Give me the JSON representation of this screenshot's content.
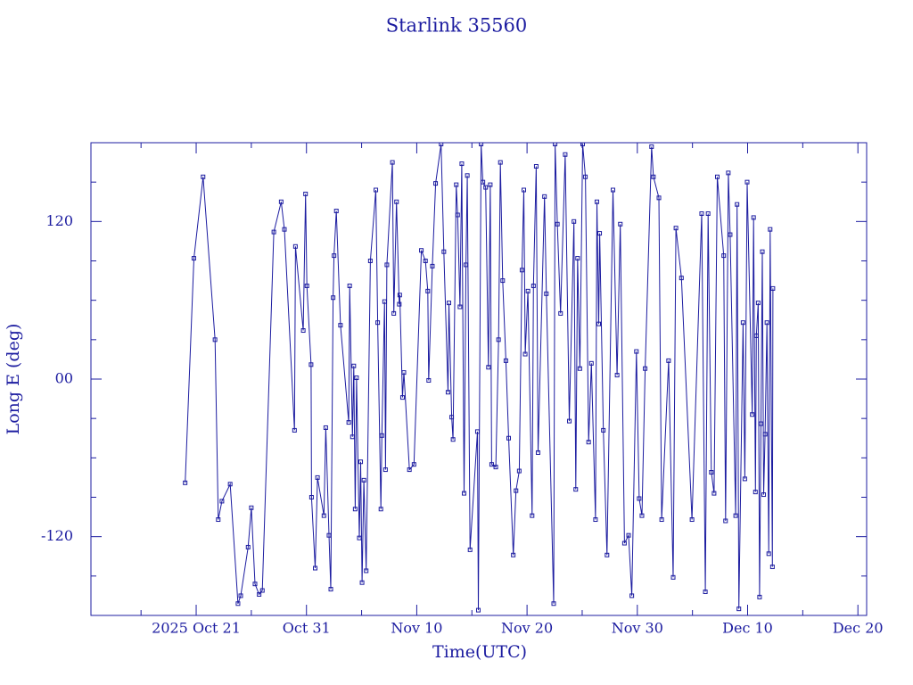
{
  "chart_data": {
    "type": "line",
    "title": "Starlink 35560",
    "x_label": "Time(UTC)",
    "y_label": "Long E (deg)",
    "color": "#1c1ca0",
    "marker": "square",
    "xlim": [
      "2025-10-11T11:00",
      "2025-12-20T19:00"
    ],
    "xticks": [
      {
        "value": "2025-10-21T00:00",
        "label": "2025 Oct 21"
      },
      {
        "value": "2025-10-31T00:00",
        "label": "Oct 31"
      },
      {
        "value": "2025-11-10T00:00",
        "label": "Nov 10"
      },
      {
        "value": "2025-11-20T00:00",
        "label": "Nov 20"
      },
      {
        "value": "2025-11-30T00:00",
        "label": "Nov 30"
      },
      {
        "value": "2025-12-10T00:00",
        "label": "Dec 10"
      },
      {
        "value": "2025-12-20T00:00",
        "label": "Dec 20"
      }
    ],
    "xminor": [
      "2025-10-16T00:00",
      "2025-10-26T00:00",
      "2025-11-05T00:00",
      "2025-11-15T00:00",
      "2025-11-25T00:00",
      "2025-12-05T00:00",
      "2025-12-15T00:00"
    ],
    "ylim": [
      -180,
      180
    ],
    "yticks": [
      -120,
      {
        "value": 0,
        "label": "00"
      },
      120
    ],
    "yminor": [
      -150,
      -90,
      -60,
      -30,
      30,
      60,
      90,
      150
    ],
    "x": [
      "2025-10-20T00:00",
      "2025-10-20T19:00",
      "2025-10-21T15:00",
      "2025-10-22T17:00",
      "2025-10-23T00:00",
      "2025-10-23T08:00",
      "2025-10-24T02:00",
      "2025-10-24T19:00",
      "2025-10-25T01:00",
      "2025-10-25T17:00",
      "2025-10-26T00:00",
      "2025-10-26T08:00",
      "2025-10-26T17:00",
      "2025-10-27T00:00",
      "2025-10-28T01:00",
      "2025-10-28T17:00",
      "2025-10-29T00:00",
      "2025-10-29T22:00",
      "2025-10-30T00:00",
      "2025-10-30T17:00",
      "2025-10-30T22:00",
      "2025-10-31T01:00",
      "2025-10-31T10:00",
      "2025-10-31T11:00",
      "2025-10-31T19:00",
      "2025-11-01T00:00",
      "2025-11-01T14:00",
      "2025-11-01T18:00",
      "2025-11-02T01:00",
      "2025-11-02T05:00",
      "2025-11-02T10:00",
      "2025-11-02T12:00",
      "2025-11-02T17:00",
      "2025-11-03T02:00",
      "2025-11-03T20:00",
      "2025-11-03T22:00",
      "2025-11-04T04:00",
      "2025-11-04T07:00",
      "2025-11-04T10:00",
      "2025-11-04T13:00",
      "2025-11-04T19:00",
      "2025-11-04T22:00",
      "2025-11-05T01:00",
      "2025-11-05T05:00",
      "2025-11-05T10:00",
      "2025-11-05T19:00",
      "2025-11-06T07:00",
      "2025-11-06T11:00",
      "2025-11-06T18:00",
      "2025-11-06T20:00",
      "2025-11-07T02:00",
      "2025-11-07T04:00",
      "2025-11-07T07:00",
      "2025-11-07T19:00",
      "2025-11-07T22:00",
      "2025-11-08T04:00",
      "2025-11-08T10:00",
      "2025-11-08T11:00",
      "2025-11-08T17:00",
      "2025-11-08T20:00",
      "2025-11-09T08:00",
      "2025-11-09T18:00",
      "2025-11-10T10:00",
      "2025-11-10T19:00",
      "2025-11-11T00:00",
      "2025-11-11T02:00",
      "2025-11-11T10:00",
      "2025-11-11T17:00",
      "2025-11-12T05:00",
      "2025-11-12T11:00",
      "2025-11-12T20:00",
      "2025-11-12T22:00",
      "2025-11-13T04:00",
      "2025-11-13T07:00",
      "2025-11-13T14:00",
      "2025-11-13T17:00",
      "2025-11-13T22:00",
      "2025-11-14T02:00",
      "2025-11-14T07:00",
      "2025-11-14T11:00",
      "2025-11-14T14:00",
      "2025-11-14T20:00",
      "2025-11-15T12:00",
      "2025-11-15T14:00",
      "2025-11-15T20:00",
      "2025-11-16T00:00",
      "2025-11-16T06:00",
      "2025-11-16T12:00",
      "2025-11-16T16:00",
      "2025-11-16T19:00",
      "2025-11-17T04:00",
      "2025-11-17T10:00",
      "2025-11-17T14:00",
      "2025-11-17T19:00",
      "2025-11-18T02:00",
      "2025-11-18T08:00",
      "2025-11-18T18:00",
      "2025-11-19T00:00",
      "2025-11-19T07:00",
      "2025-11-19T13:00",
      "2025-11-19T17:00",
      "2025-11-19T20:00",
      "2025-11-20T02:00",
      "2025-11-20T11:00",
      "2025-11-20T14:00",
      "2025-11-20T20:00",
      "2025-11-21T00:00",
      "2025-11-21T14:00",
      "2025-11-21T18:00",
      "2025-11-22T10:00",
      "2025-11-22T13:00",
      "2025-11-22T18:00",
      "2025-11-23T01:00",
      "2025-11-23T11:00",
      "2025-11-23T20:00",
      "2025-11-24T06:00",
      "2025-11-24T10:00",
      "2025-11-24T14:00",
      "2025-11-24T19:00",
      "2025-11-25T01:00",
      "2025-11-25T07:00",
      "2025-11-25T14:00",
      "2025-11-25T20:00",
      "2025-11-26T05:00",
      "2025-11-26T08:00",
      "2025-11-26T12:00",
      "2025-11-26T14:00",
      "2025-11-26T22:00",
      "2025-11-27T06:00",
      "2025-11-27T19:00",
      "2025-11-28T04:00",
      "2025-11-28T11:00",
      "2025-11-28T20:00",
      "2025-11-29T05:00",
      "2025-11-29T12:00",
      "2025-11-29T22:00",
      "2025-11-30T04:00",
      "2025-11-30T10:00",
      "2025-11-30T17:00",
      "2025-12-01T07:00",
      "2025-12-01T11:00",
      "2025-12-01T23:00",
      "2025-12-02T05:00",
      "2025-12-02T20:00",
      "2025-12-03T06:00",
      "2025-12-03T12:00",
      "2025-12-04T00:00",
      "2025-12-04T23:00",
      "2025-12-05T20:00",
      "2025-12-06T04:00",
      "2025-12-06T10:00",
      "2025-12-06T17:00",
      "2025-12-06T23:00",
      "2025-12-07T06:00",
      "2025-12-07T20:00",
      "2025-12-08T00:00",
      "2025-12-08T06:00",
      "2025-12-08T10:00",
      "2025-12-08T22:00",
      "2025-12-09T01:00",
      "2025-12-09T05:00",
      "2025-12-09T14:00",
      "2025-12-09T18:00",
      "2025-12-09T23:00",
      "2025-12-10T10:00",
      "2025-12-10T13:00",
      "2025-12-10T17:00",
      "2025-12-10T19:00",
      "2025-12-10T23:00",
      "2025-12-11T02:00",
      "2025-12-11T05:00",
      "2025-12-11T08:00",
      "2025-12-11T11:00",
      "2025-12-11T14:00",
      "2025-12-11T18:00",
      "2025-12-11T22:00",
      "2025-12-12T01:00",
      "2025-12-12T06:00",
      "2025-12-12T07:00"
    ],
    "values": [
      -79,
      92,
      154,
      30,
      -107,
      -93,
      -80,
      -171,
      -165,
      -128,
      -98,
      -156,
      -164,
      -161,
      112,
      135,
      114,
      -39,
      101,
      37,
      141,
      71,
      11,
      -90,
      -144,
      -75,
      -104,
      -37,
      -119,
      -160,
      62,
      94,
      128,
      41,
      -33,
      71,
      -44,
      10,
      -99,
      1,
      -121,
      -63,
      -155,
      -77,
      -146,
      90,
      144,
      43,
      -99,
      -43,
      59,
      -69,
      87,
      165,
      50,
      135,
      57,
      64,
      -14,
      5,
      -69,
      -65,
      98,
      90,
      67,
      -1,
      86,
      149,
      179,
      97,
      -10,
      58,
      -29,
      -46,
      148,
      125,
      55,
      164,
      -87,
      87,
      155,
      -130,
      -40,
      -176,
      179,
      150,
      146,
      9,
      148,
      -65,
      -67,
      30,
      165,
      75,
      14,
      -45,
      -134,
      -85,
      -70,
      83,
      144,
      19,
      67,
      -104,
      71,
      162,
      -56,
      139,
      65,
      -171,
      179,
      118,
      50,
      171,
      -32,
      120,
      -84,
      92,
      8,
      179,
      154,
      -48,
      12,
      -107,
      135,
      42,
      111,
      -39,
      -134,
      144,
      3,
      118,
      -125,
      -119,
      -165,
      21,
      -91,
      -104,
      8,
      177,
      154,
      138,
      -107,
      14,
      -151,
      115,
      77,
      -107,
      126,
      -162,
      126,
      -71,
      -87,
      154,
      94,
      -108,
      157,
      110,
      -104,
      133,
      -175,
      43,
      -76,
      150,
      -27,
      123,
      -86,
      33,
      58,
      -166,
      -34,
      97,
      -88,
      -42,
      43,
      -133,
      114,
      -143,
      69
    ]
  }
}
